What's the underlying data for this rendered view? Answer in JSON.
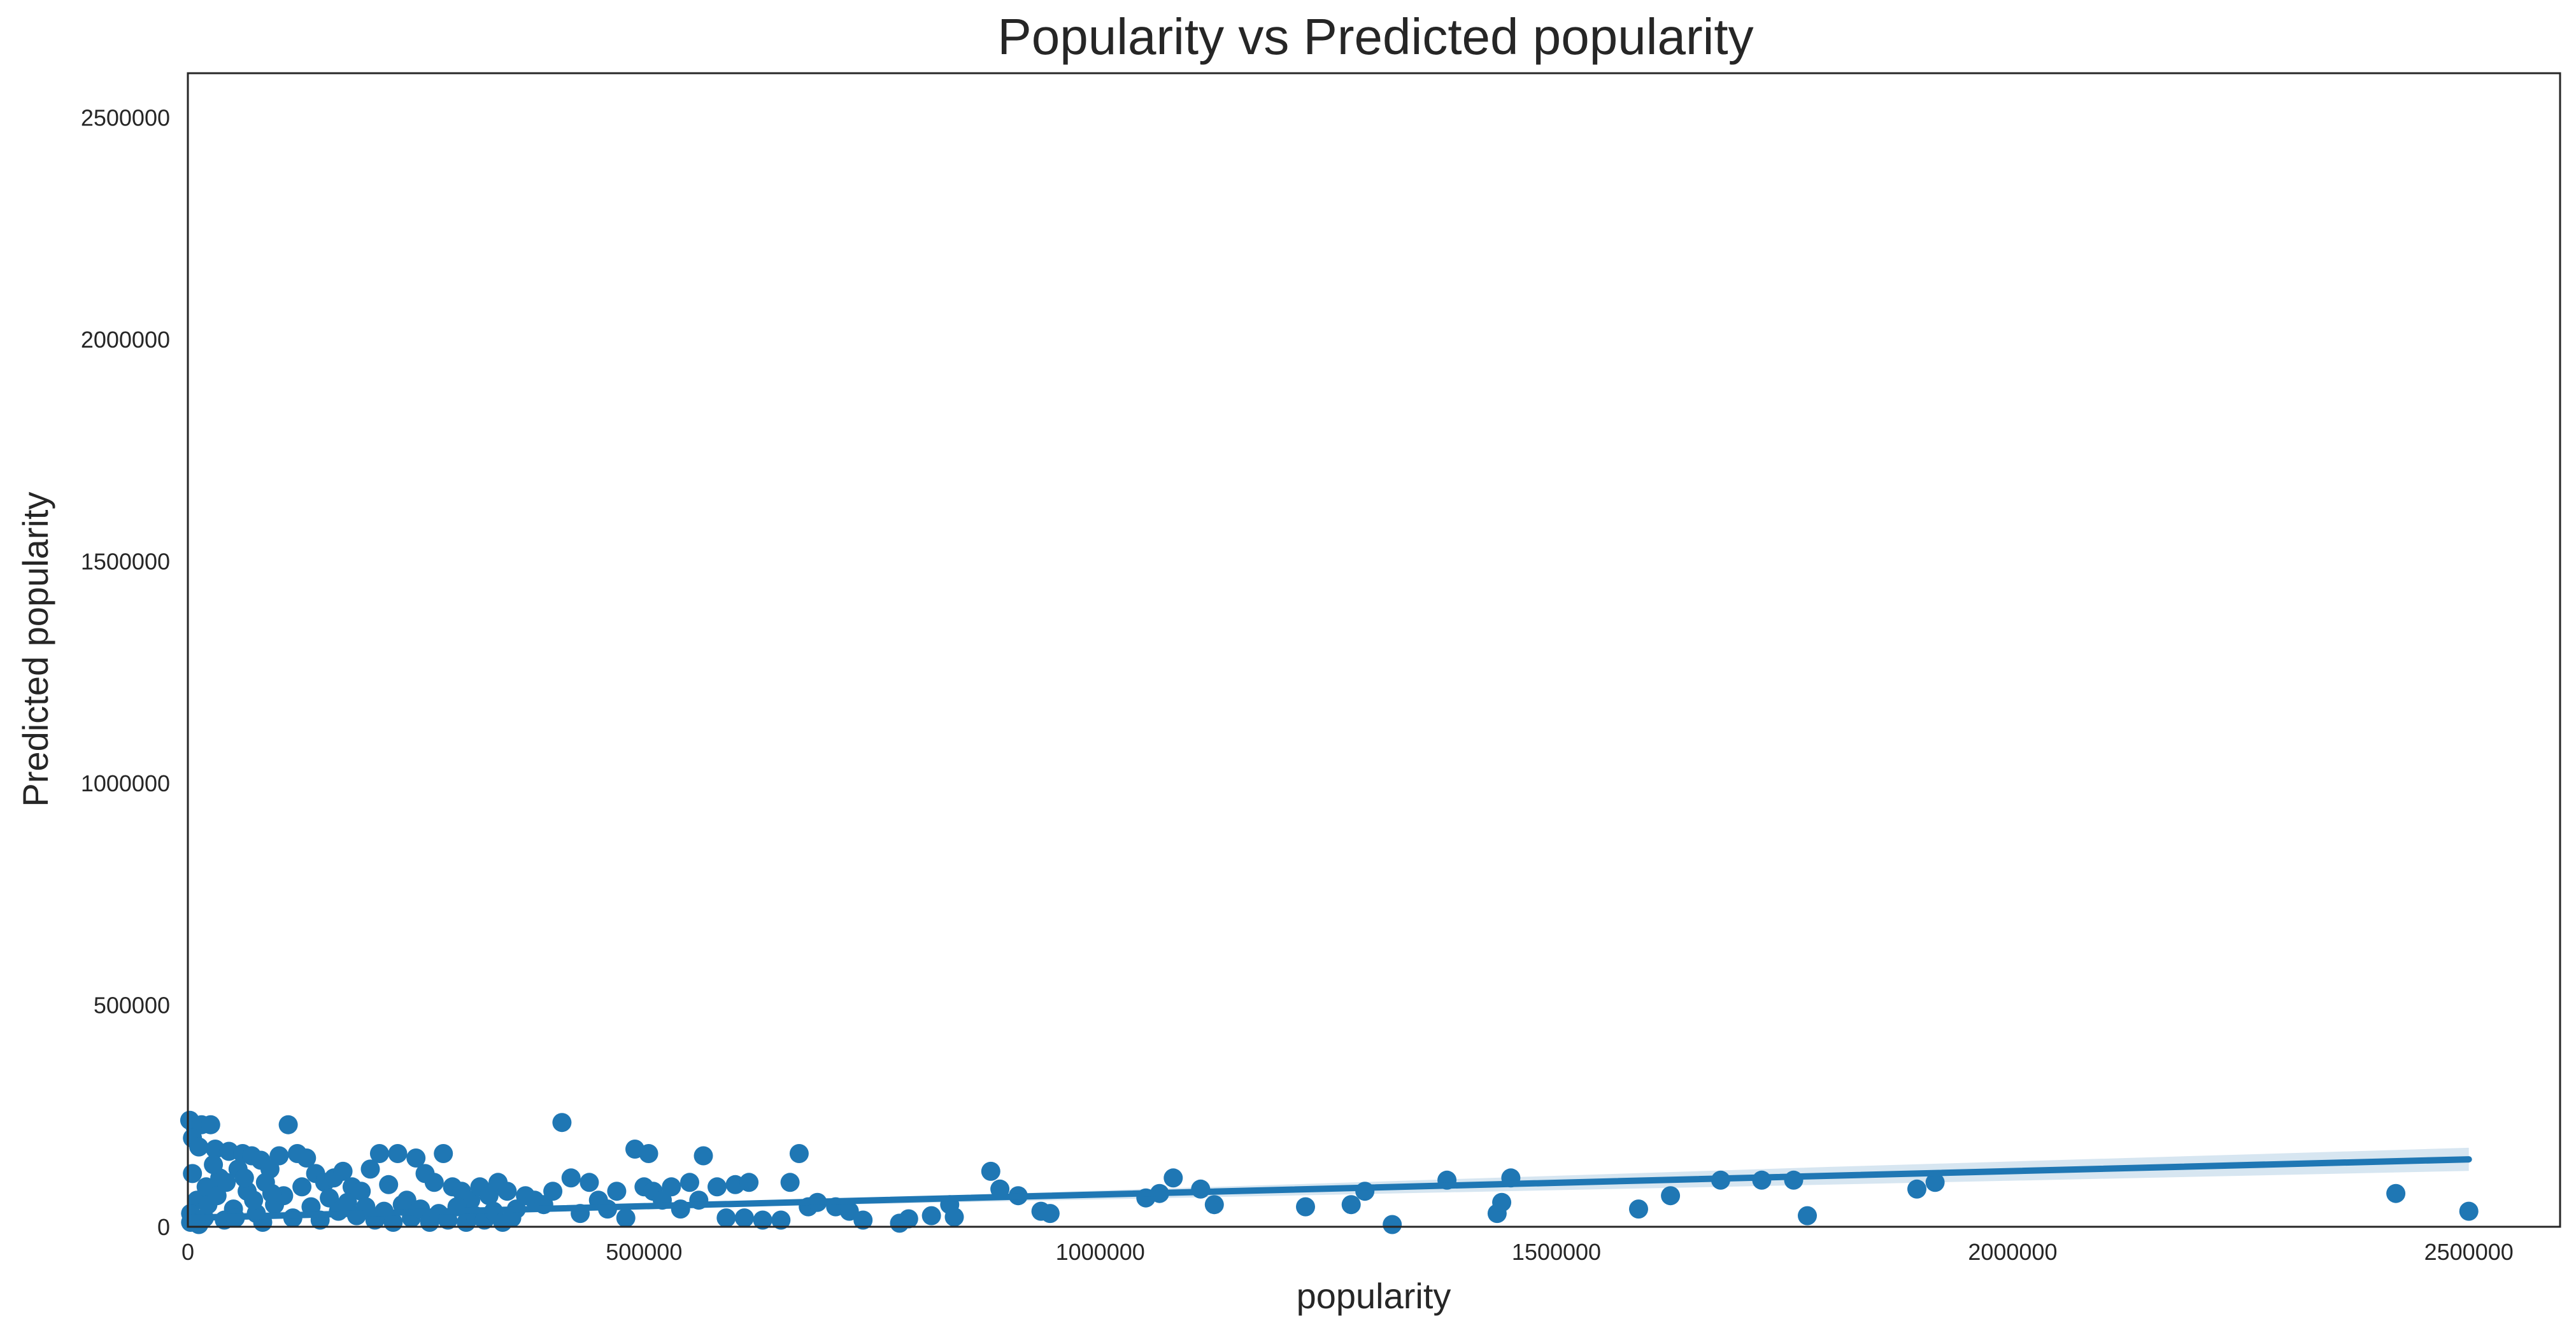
{
  "chart_data": {
    "type": "scatter",
    "title": "Popularity vs Predicted popularity",
    "xlabel": "popularity",
    "ylabel": "Predicted popularity",
    "xlim": [
      0,
      2600000
    ],
    "ylim": [
      0,
      2600000
    ],
    "x_ticks": [
      0,
      500000,
      1000000,
      1500000,
      2000000,
      2500000
    ],
    "y_ticks": [
      0,
      500000,
      1000000,
      1500000,
      2000000,
      2500000
    ],
    "x_tick_labels": [
      "0",
      "500000",
      "1000000",
      "1500000",
      "2000000",
      "2500000"
    ],
    "y_tick_labels": [
      "0",
      "500000",
      "1000000",
      "1500000",
      "2000000",
      "2500000"
    ],
    "grid": false,
    "point_color": "#1f77b4",
    "series": [
      {
        "kind": "points",
        "points": [
          [
            2000,
            240000
          ],
          [
            8000,
            225000
          ],
          [
            15000,
            230000
          ],
          [
            25000,
            230000
          ],
          [
            5000,
            200000
          ],
          [
            12000,
            180000
          ],
          [
            30000,
            175000
          ],
          [
            45000,
            170000
          ],
          [
            60000,
            165000
          ],
          [
            70000,
            160000
          ],
          [
            80000,
            150000
          ],
          [
            90000,
            130000
          ],
          [
            100000,
            160000
          ],
          [
            110000,
            230000
          ],
          [
            120000,
            165000
          ],
          [
            130000,
            155000
          ],
          [
            140000,
            120000
          ],
          [
            150000,
            100000
          ],
          [
            160000,
            110000
          ],
          [
            170000,
            125000
          ],
          [
            180000,
            90000
          ],
          [
            190000,
            80000
          ],
          [
            200000,
            130000
          ],
          [
            210000,
            165000
          ],
          [
            220000,
            95000
          ],
          [
            230000,
            165000
          ],
          [
            240000,
            60000
          ],
          [
            250000,
            155000
          ],
          [
            260000,
            120000
          ],
          [
            270000,
            100000
          ],
          [
            280000,
            165000
          ],
          [
            290000,
            90000
          ],
          [
            300000,
            80000
          ],
          [
            310000,
            60000
          ],
          [
            320000,
            90000
          ],
          [
            330000,
            70000
          ],
          [
            340000,
            100000
          ],
          [
            350000,
            80000
          ],
          [
            360000,
            40000
          ],
          [
            370000,
            70000
          ],
          [
            380000,
            60000
          ],
          [
            390000,
            50000
          ],
          [
            400000,
            80000
          ],
          [
            410000,
            235000
          ],
          [
            420000,
            110000
          ],
          [
            430000,
            30000
          ],
          [
            440000,
            100000
          ],
          [
            450000,
            60000
          ],
          [
            460000,
            40000
          ],
          [
            470000,
            80000
          ],
          [
            480000,
            20000
          ],
          [
            490000,
            175000
          ],
          [
            500000,
            90000
          ],
          [
            505000,
            165000
          ],
          [
            510000,
            80000
          ],
          [
            520000,
            60000
          ],
          [
            530000,
            90000
          ],
          [
            540000,
            40000
          ],
          [
            550000,
            100000
          ],
          [
            560000,
            60000
          ],
          [
            565000,
            160000
          ],
          [
            580000,
            90000
          ],
          [
            590000,
            20000
          ],
          [
            600000,
            95000
          ],
          [
            610000,
            20000
          ],
          [
            615000,
            100000
          ],
          [
            630000,
            15000
          ],
          [
            650000,
            15000
          ],
          [
            660000,
            100000
          ],
          [
            670000,
            165000
          ],
          [
            680000,
            45000
          ],
          [
            690000,
            55000
          ],
          [
            710000,
            45000
          ],
          [
            725000,
            35000
          ],
          [
            740000,
            15000
          ],
          [
            780000,
            8000
          ],
          [
            790000,
            18000
          ],
          [
            815000,
            25000
          ],
          [
            835000,
            50000
          ],
          [
            840000,
            22000
          ],
          [
            880000,
            125000
          ],
          [
            890000,
            85000
          ],
          [
            910000,
            70000
          ],
          [
            935000,
            35000
          ],
          [
            945000,
            30000
          ],
          [
            1050000,
            65000
          ],
          [
            1065000,
            75000
          ],
          [
            1080000,
            110000
          ],
          [
            1110000,
            85000
          ],
          [
            1125000,
            50000
          ],
          [
            1225000,
            45000
          ],
          [
            1275000,
            50000
          ],
          [
            1290000,
            80000
          ],
          [
            1320000,
            5000
          ],
          [
            1380000,
            105000
          ],
          [
            1435000,
            30000
          ],
          [
            1440000,
            55000
          ],
          [
            1450000,
            110000
          ],
          [
            1590000,
            40000
          ],
          [
            1625000,
            70000
          ],
          [
            1680000,
            105000
          ],
          [
            1725000,
            105000
          ],
          [
            1760000,
            105000
          ],
          [
            1775000,
            25000
          ],
          [
            1895000,
            85000
          ],
          [
            1915000,
            100000
          ],
          [
            2420000,
            75000
          ],
          [
            2500000,
            35000
          ],
          [
            5000,
            120000
          ],
          [
            10000,
            60000
          ],
          [
            20000,
            90000
          ],
          [
            35000,
            110000
          ],
          [
            50000,
            40000
          ],
          [
            65000,
            80000
          ],
          [
            75000,
            30000
          ],
          [
            85000,
            100000
          ],
          [
            95000,
            50000
          ],
          [
            105000,
            70000
          ],
          [
            115000,
            20000
          ],
          [
            125000,
            90000
          ],
          [
            135000,
            45000
          ],
          [
            145000,
            15000
          ],
          [
            155000,
            65000
          ],
          [
            165000,
            35000
          ],
          [
            175000,
            55000
          ],
          [
            185000,
            25000
          ],
          [
            195000,
            45000
          ],
          [
            205000,
            15000
          ],
          [
            215000,
            35000
          ],
          [
            225000,
            10000
          ],
          [
            235000,
            50000
          ],
          [
            245000,
            20000
          ],
          [
            255000,
            40000
          ],
          [
            265000,
            10000
          ],
          [
            275000,
            30000
          ],
          [
            285000,
            15000
          ],
          [
            295000,
            45000
          ],
          [
            305000,
            10000
          ],
          [
            315000,
            25000
          ],
          [
            325000,
            15000
          ],
          [
            335000,
            35000
          ],
          [
            345000,
            10000
          ],
          [
            355000,
            20000
          ],
          [
            3000,
            30000
          ],
          [
            18000,
            20000
          ],
          [
            28000,
            140000
          ],
          [
            40000,
            15000
          ],
          [
            55000,
            130000
          ],
          [
            3000,
            10000
          ],
          [
            12000,
            5000
          ],
          [
            22000,
            50000
          ],
          [
            32000,
            70000
          ],
          [
            42000,
            100000
          ],
          [
            52000,
            20000
          ],
          [
            62000,
            110000
          ],
          [
            72000,
            60000
          ],
          [
            82000,
            10000
          ],
          [
            92000,
            75000
          ]
        ]
      },
      {
        "kind": "regression_line",
        "x": [
          0,
          2500000
        ],
        "y": [
          20000,
          152000
        ],
        "ci_band": {
          "x": [
            0,
            600000,
            1200000,
            1800000,
            2500000
          ],
          "upper": [
            30000,
            55000,
            95000,
            135000,
            178000
          ],
          "lower": [
            12000,
            45000,
            70000,
            95000,
            126000
          ]
        }
      }
    ]
  }
}
